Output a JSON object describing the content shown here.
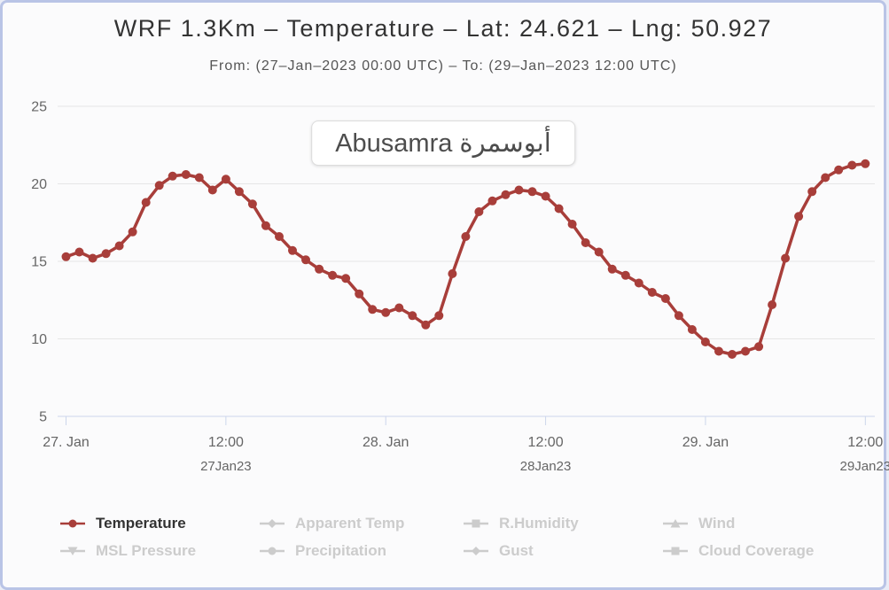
{
  "header": {
    "title": "WRF 1.3Km – Temperature – Lat: 24.621 – Lng: 50.927",
    "subtitle": "From: (27–Jan–2023 00:00 UTC) – To: (29–Jan–2023 12:00 UTC)"
  },
  "location_label": "Abusamra أبوسمرة",
  "colors": {
    "series": "#a83e3a",
    "inactive": "#cccccc",
    "grid": "#e6e6e6",
    "axis_line": "#ccd6eb",
    "axis_text": "#666666",
    "title_text": "#333333",
    "subtitle_text": "#555555",
    "card_border": "#b9c4e6",
    "card_background": "#fbfbfc"
  },
  "chart_data": {
    "type": "line",
    "title": "WRF 1.3Km – Temperature – Lat: 24.621 – Lng: 50.927",
    "subtitle": "From: (27–Jan–2023 00:00 UTC) – To: (29–Jan–2023 12:00 UTC)",
    "x_axis": {
      "kind": "datetime",
      "start": "27-Jan-2023 00:00 UTC",
      "end": "29-Jan-2023 12:00 UTC",
      "step_hours": 1,
      "ticks": [
        {
          "hour": 0,
          "label": "27. Jan",
          "sublabel": ""
        },
        {
          "hour": 12,
          "label": "12:00",
          "sublabel": "27Jan23"
        },
        {
          "hour": 24,
          "label": "28. Jan",
          "sublabel": ""
        },
        {
          "hour": 36,
          "label": "12:00",
          "sublabel": "28Jan23"
        },
        {
          "hour": 48,
          "label": "29. Jan",
          "sublabel": ""
        },
        {
          "hour": 60,
          "label": "12:00",
          "sublabel": "29Jan23"
        }
      ]
    },
    "y_axis": {
      "ticks": [
        5,
        10,
        15,
        20,
        25
      ],
      "lim": [
        5,
        25
      ],
      "grid": true
    },
    "series": [
      {
        "name": "Temperature",
        "color": "#a83e3a",
        "marker": "circle",
        "values": [
          15.3,
          15.6,
          15.2,
          15.5,
          16.0,
          16.9,
          18.8,
          19.9,
          20.5,
          20.6,
          20.4,
          19.6,
          20.3,
          19.5,
          18.7,
          17.3,
          16.6,
          15.7,
          15.1,
          14.5,
          14.1,
          13.9,
          12.9,
          11.9,
          11.7,
          12.0,
          11.5,
          10.9,
          11.5,
          14.2,
          16.6,
          18.2,
          18.9,
          19.3,
          19.6,
          19.5,
          19.2,
          18.4,
          17.4,
          16.2,
          15.6,
          14.5,
          14.1,
          13.6,
          13.0,
          12.6,
          11.5,
          10.6,
          9.8,
          9.2,
          9.0,
          9.2,
          9.5,
          12.2,
          15.2,
          17.9,
          19.5,
          20.4,
          20.9,
          21.2,
          21.3
        ]
      }
    ],
    "legend": {
      "position": "bottom-left",
      "items": [
        {
          "label": "Temperature",
          "marker": "circle",
          "active": true
        },
        {
          "label": "Apparent Temp",
          "marker": "diamond",
          "active": false
        },
        {
          "label": "R.Humidity",
          "marker": "square",
          "active": false
        },
        {
          "label": "Wind",
          "marker": "triangle",
          "active": false
        },
        {
          "label": "MSL Pressure",
          "marker": "triangle-down",
          "active": false
        },
        {
          "label": "Precipitation",
          "marker": "circle",
          "active": false
        },
        {
          "label": "Gust",
          "marker": "diamond",
          "active": false
        },
        {
          "label": "Cloud Coverage",
          "marker": "square",
          "active": false
        }
      ]
    }
  }
}
